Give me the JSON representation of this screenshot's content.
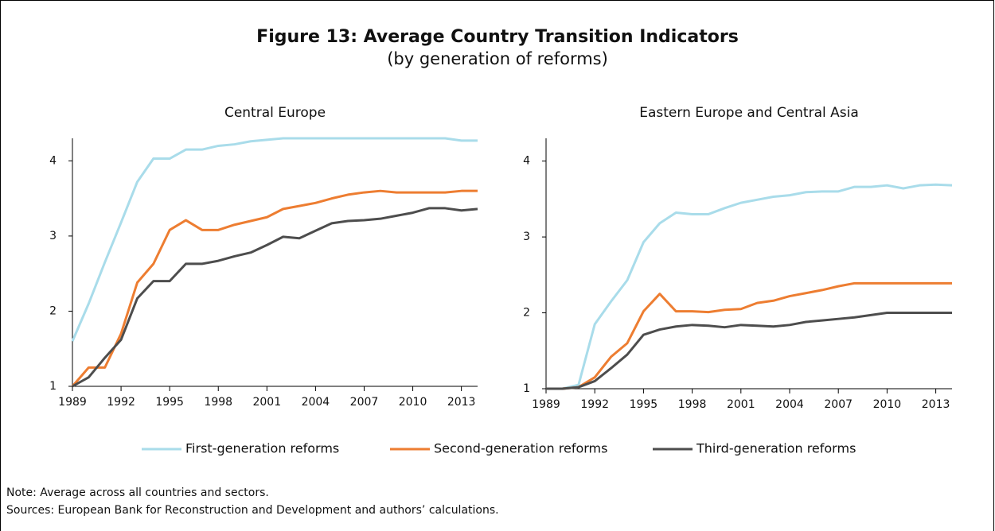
{
  "header": {
    "title": "Figure 13: Average Country Transition Indicators",
    "subtitle": "(by generation of reforms)"
  },
  "chart_data": [
    {
      "type": "line",
      "title": "Central Europe",
      "x": [
        1989,
        1990,
        1991,
        1992,
        1993,
        1994,
        1995,
        1996,
        1997,
        1998,
        1999,
        2000,
        2001,
        2002,
        2003,
        2004,
        2005,
        2006,
        2007,
        2008,
        2009,
        2010,
        2011,
        2012,
        2013,
        2014
      ],
      "xlim": [
        1989,
        2014
      ],
      "xticks": [
        1989,
        1992,
        1995,
        1998,
        2001,
        2004,
        2007,
        2010,
        2013
      ],
      "ylim": [
        1,
        4.3
      ],
      "yticks": [
        1,
        2,
        3,
        4
      ],
      "grid": false,
      "series": [
        {
          "name": "First-generation reforms",
          "color": "#a9dcea",
          "values": [
            1.6,
            2.1,
            2.65,
            3.18,
            3.72,
            4.03,
            4.03,
            4.15,
            4.15,
            4.2,
            4.22,
            4.26,
            4.28,
            4.3,
            4.3,
            4.3,
            4.3,
            4.3,
            4.3,
            4.3,
            4.3,
            4.3,
            4.3,
            4.3,
            4.27,
            4.27
          ]
        },
        {
          "name": "Second-generation reforms",
          "color": "#ed7d31",
          "values": [
            1.0,
            1.25,
            1.25,
            1.7,
            2.38,
            2.63,
            3.08,
            3.21,
            3.08,
            3.08,
            3.15,
            3.2,
            3.25,
            3.36,
            3.4,
            3.44,
            3.5,
            3.55,
            3.58,
            3.6,
            3.58,
            3.58,
            3.58,
            3.58,
            3.6,
            3.6
          ]
        },
        {
          "name": "Third-generation reforms",
          "color": "#4d4d4d",
          "values": [
            1.0,
            1.12,
            1.38,
            1.62,
            2.17,
            2.4,
            2.4,
            2.63,
            2.63,
            2.67,
            2.73,
            2.78,
            2.88,
            2.99,
            2.97,
            3.07,
            3.17,
            3.2,
            3.21,
            3.23,
            3.27,
            3.31,
            3.37,
            3.37,
            3.34,
            3.36
          ]
        }
      ]
    },
    {
      "type": "line",
      "title": "Eastern Europe and Central Asia",
      "x": [
        1989,
        1990,
        1991,
        1992,
        1993,
        1994,
        1995,
        1996,
        1997,
        1998,
        1999,
        2000,
        2001,
        2002,
        2003,
        2004,
        2005,
        2006,
        2007,
        2008,
        2009,
        2010,
        2011,
        2012,
        2013,
        2014
      ],
      "xlim": [
        1989,
        2014
      ],
      "xticks": [
        1989,
        1992,
        1995,
        1998,
        2001,
        2004,
        2007,
        2010,
        2013
      ],
      "ylim": [
        1,
        4.3
      ],
      "yticks": [
        1,
        2,
        3,
        4
      ],
      "grid": false,
      "series": [
        {
          "name": "First-generation reforms",
          "color": "#a9dcea",
          "values": [
            1.0,
            1.0,
            1.05,
            1.85,
            2.15,
            2.43,
            2.93,
            3.18,
            3.32,
            3.3,
            3.3,
            3.38,
            3.45,
            3.49,
            3.53,
            3.55,
            3.59,
            3.6,
            3.6,
            3.66,
            3.66,
            3.68,
            3.64,
            3.68,
            3.69,
            3.68
          ]
        },
        {
          "name": "Second-generation reforms",
          "color": "#ed7d31",
          "values": [
            1.0,
            1.0,
            1.02,
            1.15,
            1.42,
            1.6,
            2.02,
            2.25,
            2.02,
            2.02,
            2.01,
            2.04,
            2.05,
            2.13,
            2.16,
            2.22,
            2.26,
            2.3,
            2.35,
            2.39,
            2.39,
            2.39,
            2.39,
            2.39,
            2.39,
            2.39
          ]
        },
        {
          "name": "Third-generation reforms",
          "color": "#4d4d4d",
          "values": [
            1.0,
            1.0,
            1.02,
            1.1,
            1.27,
            1.45,
            1.71,
            1.78,
            1.82,
            1.84,
            1.83,
            1.81,
            1.84,
            1.83,
            1.82,
            1.84,
            1.88,
            1.9,
            1.92,
            1.94,
            1.97,
            2.0,
            2.0,
            2.0,
            2.0,
            2.0
          ]
        }
      ]
    }
  ],
  "notes": [
    "Note: Average across all countries and sectors.",
    "Sources: European Bank for Reconstruction and Development and authors’ calculations."
  ]
}
